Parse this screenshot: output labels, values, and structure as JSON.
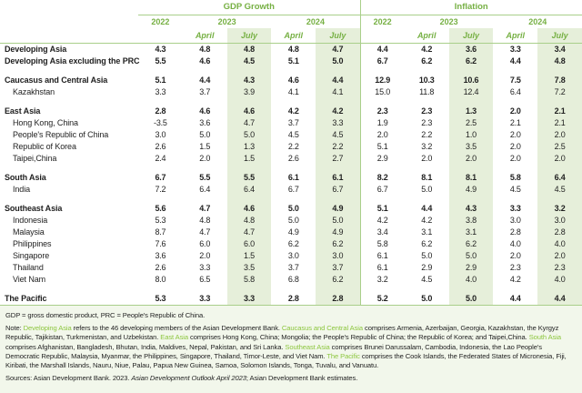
{
  "chart_data": {
    "type": "table",
    "column_groups": [
      "GDP Growth",
      "Inflation"
    ],
    "years": [
      "2022",
      "2023",
      "2024"
    ],
    "months": [
      "April",
      "July"
    ],
    "rows": [
      {
        "label": "Developing Asia",
        "bold": true,
        "gdp": [
          "4.3",
          "4.8",
          "4.8",
          "4.8",
          "4.7"
        ],
        "inflation": [
          "4.4",
          "4.2",
          "3.6",
          "3.3",
          "3.4"
        ]
      },
      {
        "label": "Developing Asia excluding the PRC",
        "bold": true,
        "gdp": [
          "5.5",
          "4.6",
          "4.5",
          "5.1",
          "5.0"
        ],
        "inflation": [
          "6.7",
          "6.2",
          "6.2",
          "4.4",
          "4.8"
        ]
      },
      {
        "spacer": true
      },
      {
        "label": "Caucasus and Central Asia",
        "bold": true,
        "gdp": [
          "5.1",
          "4.4",
          "4.3",
          "4.6",
          "4.4"
        ],
        "inflation": [
          "12.9",
          "10.3",
          "10.6",
          "7.5",
          "7.8"
        ]
      },
      {
        "label": "Kazakhstan",
        "indent": true,
        "gdp": [
          "3.3",
          "3.7",
          "3.9",
          "4.1",
          "4.1"
        ],
        "inflation": [
          "15.0",
          "11.8",
          "12.4",
          "6.4",
          "7.2"
        ]
      },
      {
        "spacer": true
      },
      {
        "label": "East Asia",
        "bold": true,
        "gdp": [
          "2.8",
          "4.6",
          "4.6",
          "4.2",
          "4.2"
        ],
        "inflation": [
          "2.3",
          "2.3",
          "1.3",
          "2.0",
          "2.1"
        ]
      },
      {
        "label": "Hong Kong, China",
        "indent": true,
        "gdp": [
          "-3.5",
          "3.6",
          "4.7",
          "3.7",
          "3.3"
        ],
        "inflation": [
          "1.9",
          "2.3",
          "2.5",
          "2.1",
          "2.1"
        ]
      },
      {
        "label": "People's Republic of China",
        "indent": true,
        "gdp": [
          "3.0",
          "5.0",
          "5.0",
          "4.5",
          "4.5"
        ],
        "inflation": [
          "2.0",
          "2.2",
          "1.0",
          "2.0",
          "2.0"
        ]
      },
      {
        "label": "Republic of Korea",
        "indent": true,
        "gdp": [
          "2.6",
          "1.5",
          "1.3",
          "2.2",
          "2.2"
        ],
        "inflation": [
          "5.1",
          "3.2",
          "3.5",
          "2.0",
          "2.5"
        ]
      },
      {
        "label": "Taipei,China",
        "indent": true,
        "gdp": [
          "2.4",
          "2.0",
          "1.5",
          "2.6",
          "2.7"
        ],
        "inflation": [
          "2.9",
          "2.0",
          "2.0",
          "2.0",
          "2.0"
        ]
      },
      {
        "spacer": true
      },
      {
        "label": "South Asia",
        "bold": true,
        "gdp": [
          "6.7",
          "5.5",
          "5.5",
          "6.1",
          "6.1"
        ],
        "inflation": [
          "8.2",
          "8.1",
          "8.1",
          "5.8",
          "6.4"
        ]
      },
      {
        "label": "India",
        "indent": true,
        "gdp": [
          "7.2",
          "6.4",
          "6.4",
          "6.7",
          "6.7"
        ],
        "inflation": [
          "6.7",
          "5.0",
          "4.9",
          "4.5",
          "4.5"
        ]
      },
      {
        "spacer": true
      },
      {
        "label": "Southeast Asia",
        "bold": true,
        "gdp": [
          "5.6",
          "4.7",
          "4.6",
          "5.0",
          "4.9"
        ],
        "inflation": [
          "5.1",
          "4.4",
          "4.3",
          "3.3",
          "3.2"
        ]
      },
      {
        "label": "Indonesia",
        "indent": true,
        "gdp": [
          "5.3",
          "4.8",
          "4.8",
          "5.0",
          "5.0"
        ],
        "inflation": [
          "4.2",
          "4.2",
          "3.8",
          "3.0",
          "3.0"
        ]
      },
      {
        "label": "Malaysia",
        "indent": true,
        "gdp": [
          "8.7",
          "4.7",
          "4.7",
          "4.9",
          "4.9"
        ],
        "inflation": [
          "3.4",
          "3.1",
          "3.1",
          "2.8",
          "2.8"
        ]
      },
      {
        "label": "Philippines",
        "indent": true,
        "gdp": [
          "7.6",
          "6.0",
          "6.0",
          "6.2",
          "6.2"
        ],
        "inflation": [
          "5.8",
          "6.2",
          "6.2",
          "4.0",
          "4.0"
        ]
      },
      {
        "label": "Singapore",
        "indent": true,
        "gdp": [
          "3.6",
          "2.0",
          "1.5",
          "3.0",
          "3.0"
        ],
        "inflation": [
          "6.1",
          "5.0",
          "5.0",
          "2.0",
          "2.0"
        ]
      },
      {
        "label": "Thailand",
        "indent": true,
        "gdp": [
          "2.6",
          "3.3",
          "3.5",
          "3.7",
          "3.7"
        ],
        "inflation": [
          "6.1",
          "2.9",
          "2.9",
          "2.3",
          "2.3"
        ]
      },
      {
        "label": "Viet Nam",
        "indent": true,
        "gdp": [
          "8.0",
          "6.5",
          "5.8",
          "6.8",
          "6.2"
        ],
        "inflation": [
          "3.2",
          "4.5",
          "4.0",
          "4.2",
          "4.0"
        ]
      },
      {
        "spacer": true
      },
      {
        "label": "The Pacific",
        "bold": true,
        "last": true,
        "gdp": [
          "5.3",
          "3.3",
          "3.3",
          "2.8",
          "2.8"
        ],
        "inflation": [
          "5.2",
          "5.0",
          "5.0",
          "4.4",
          "4.4"
        ]
      }
    ]
  },
  "footer": {
    "abbreviations": "GDP = gross domestic product, PRC = People's Republic of China.",
    "note_segments": [
      {
        "text": "Note: "
      },
      {
        "text": "Developing Asia",
        "green": true
      },
      {
        "text": " refers to the 46 developing members of the Asian Development Bank. "
      },
      {
        "text": "Caucasus and Central Asia",
        "green": true
      },
      {
        "text": " comprises Armenia, Azerbaijan, Georgia, Kazakhstan, the Kyrgyz Republic, Tajikistan, Turkmenistan, and Uzbekistan. "
      },
      {
        "text": "East Asia",
        "green": true
      },
      {
        "text": " comprises Hong Kong, China; Mongolia; the People's Republic of China; the Republic of Korea; and Taipei,China. "
      },
      {
        "text": "South Asia",
        "green": true
      },
      {
        "text": " comprises Afghanistan, Bangladesh, Bhutan, India, Maldives, Nepal, Pakistan, and Sri Lanka. "
      },
      {
        "text": "Southeast Asia",
        "green": true
      },
      {
        "text": " comprises Brunei Darussalam, Cambodia, Indonesia, the Lao People's Democratic Republic, Malaysia, Myanmar, the Philippines, Singapore, Thailand, Timor-Leste, and Viet Nam. "
      },
      {
        "text": "The Pacific",
        "green": true
      },
      {
        "text": " comprises the Cook Islands, the Federated States of Micronesia, Fiji, Kiribati, the Marshall Islands, Nauru, Niue, Palau, Papua New Guinea, Samoa, Solomon Islands, Tonga, Tuvalu, and Vanuatu."
      }
    ],
    "sources_segments": [
      {
        "text": "Sources: Asian Development Bank. 2023. "
      },
      {
        "text": "Asian Development Outlook April 2023",
        "italic": true
      },
      {
        "text": "; Asian Development Bank estimates."
      }
    ]
  },
  "colors": {
    "header_green": "#76b043",
    "note_green": "#8dc63f",
    "line_green": "#a9cf8a",
    "shade_green": "#e6efda",
    "footer_bg": "#f2f7eb"
  }
}
